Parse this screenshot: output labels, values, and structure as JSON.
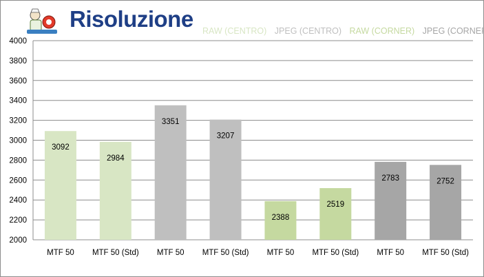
{
  "title": "Risoluzione",
  "colors": {
    "raw_centro": "#d8e6c4",
    "jpeg_centro": "#bfbfbf",
    "raw_corner": "#c5d9a0",
    "jpeg_corner": "#a6a6a6",
    "title": "#1f3f86",
    "grid": "#8c8c8c"
  },
  "legend": [
    {
      "label": "RAW (CENTRO)",
      "color": "#d8e6c4"
    },
    {
      "label": "JPEG (CENTRO)",
      "color": "#bfbfbf"
    },
    {
      "label": "RAW (CORNER)",
      "color": "#c5d9a0"
    },
    {
      "label": "JPEG (CORNER)",
      "color": "#a6a6a6"
    }
  ],
  "chart_data": {
    "type": "bar",
    "title": "Risoluzione",
    "categories": [
      "MTF 50",
      "MTF 50 (Std)",
      "MTF 50",
      "MTF 50 (Std)",
      "MTF 50",
      "MTF 50 (Std)",
      "MTF 50",
      "MTF 50 (Std)"
    ],
    "values": [
      3092,
      2984,
      3351,
      3207,
      2388,
      2519,
      2783,
      2752
    ],
    "groups": [
      "RAW (CENTRO)",
      "RAW (CENTRO)",
      "JPEG (CENTRO)",
      "JPEG (CENTRO)",
      "RAW (CORNER)",
      "RAW (CORNER)",
      "JPEG (CORNER)",
      "JPEG (CORNER)"
    ],
    "bar_colors": [
      "#d8e6c4",
      "#d8e6c4",
      "#bfbfbf",
      "#bfbfbf",
      "#c5d9a0",
      "#c5d9a0",
      "#a6a6a6",
      "#a6a6a6"
    ],
    "ylim": [
      2000,
      4000
    ],
    "yticks": [
      2000,
      2200,
      2400,
      2600,
      2800,
      3000,
      3200,
      3400,
      3600,
      3800,
      4000
    ],
    "grid": true,
    "legend_position": "top-right"
  }
}
